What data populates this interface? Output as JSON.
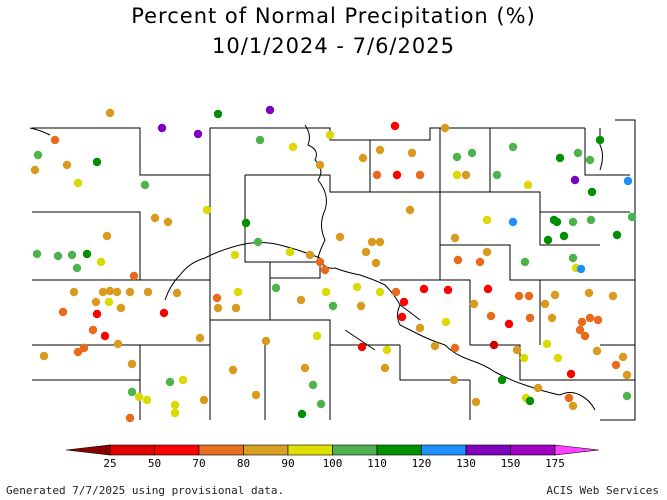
{
  "title_line1": "Percent of Normal Precipitation (%)",
  "title_line2": "10/1/2024 - 7/6/2025",
  "legend": {
    "ticks": [
      "25",
      "50",
      "70",
      "80",
      "90",
      "100",
      "110",
      "120",
      "130",
      "150",
      "175"
    ],
    "colors": [
      "#8b0000",
      "#e00000",
      "#ff0000",
      "#e87020",
      "#d8a020",
      "#e0e000",
      "#50b050",
      "#009000",
      "#1e90ff",
      "#8000c0",
      "#a000c0",
      "#ff40ff"
    ]
  },
  "footer_left": "Generated 7/7/2025 using provisional data.",
  "footer_right": "ACIS Web Services"
}
